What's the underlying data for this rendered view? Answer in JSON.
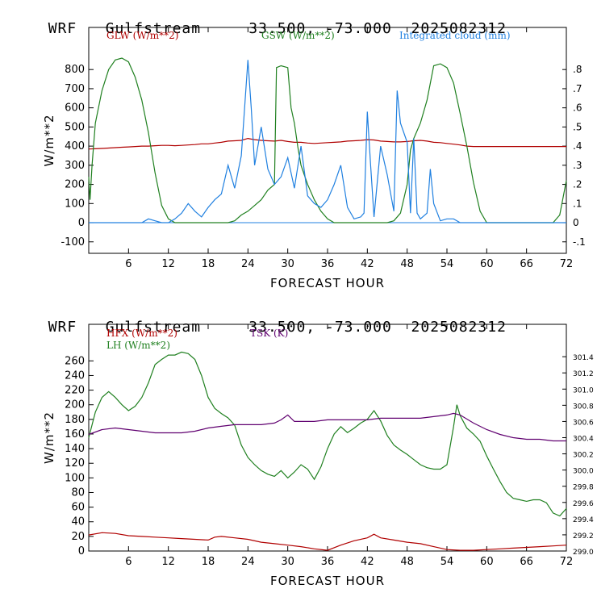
{
  "panels": [
    {
      "header": {
        "model": "WRF",
        "site": "Gulfstream",
        "coords": "33.500, -73.000",
        "run": "2025082312"
      },
      "chart_data": {
        "type": "line",
        "xlabel": "FORECAST HOUR",
        "ylabel": "W/m**2",
        "xlim": [
          0,
          72
        ],
        "ylim": [
          -160,
          1020
        ],
        "yticks": [
          -100,
          0,
          100,
          200,
          300,
          400,
          500,
          600,
          700,
          800
        ],
        "xticks": [
          6,
          12,
          18,
          24,
          30,
          36,
          42,
          48,
          54,
          60,
          66,
          72
        ],
        "y2lim": [
          -0.16,
          1.02
        ],
        "y2ticks": [
          -0.1,
          0,
          0.1,
          0.2,
          0.3,
          0.4,
          0.5,
          0.6,
          0.7,
          0.8
        ],
        "y2tick_labels": [
          "-.1",
          "0",
          ".1",
          ".2",
          ".3",
          ".4",
          ".5",
          ".6",
          ".7",
          ".8"
        ],
        "legend": [
          {
            "label": "GLW (W/m**2)",
            "color": "#b00000"
          },
          {
            "label": "GSW (W/m**2)",
            "color": "#208020"
          },
          {
            "label": "Integrated cloud (mm)",
            "color": "#2080e0"
          }
        ],
        "series": [
          {
            "name": "GLW (W/m**2)",
            "axis": "left",
            "color": "#b00000",
            "x": [
              0,
              1,
              2,
              3,
              4,
              5,
              6,
              7,
              8,
              9,
              10,
              11,
              12,
              13,
              14,
              15,
              16,
              17,
              18,
              19,
              20,
              21,
              22,
              23,
              24,
              25,
              26,
              27,
              28,
              29,
              30,
              31,
              32,
              33,
              34,
              35,
              36,
              37,
              38,
              39,
              40,
              41,
              42,
              43,
              44,
              45,
              46,
              47,
              48,
              49,
              50,
              51,
              52,
              53,
              54,
              55,
              56,
              57,
              58,
              59,
              60,
              61,
              62,
              63,
              64,
              65,
              66,
              67,
              68,
              69,
              70,
              71,
              72
            ],
            "values": [
              385,
              386,
              388,
              390,
              392,
              394,
              396,
              398,
              400,
              400,
              402,
              404,
              404,
              402,
              404,
              406,
              408,
              412,
              412,
              416,
              420,
              426,
              428,
              430,
              440,
              434,
              430,
              428,
              426,
              430,
              424,
              420,
              420,
              416,
              414,
              416,
              418,
              420,
              422,
              426,
              428,
              430,
              434,
              432,
              426,
              424,
              422,
              422,
              424,
              428,
              430,
              426,
              420,
              418,
              414,
              410,
              406,
              400,
              398,
              398,
              398,
              398,
              398,
              398,
              398,
              398,
              398,
              398,
              398,
              398,
              398,
              398,
              398
            ]
          },
          {
            "name": "GSW (W/m**2)",
            "axis": "left",
            "color": "#208020",
            "x": [
              0,
              0.2,
              0.5,
              1,
              2,
              3,
              4,
              5,
              6,
              7,
              8,
              9,
              10,
              11,
              12,
              13,
              14,
              18,
              20,
              21,
              22,
              23,
              24,
              25,
              26,
              27,
              28,
              28.3,
              29,
              30,
              30.5,
              31,
              31.5,
              32,
              33,
              34,
              35,
              36,
              37,
              38,
              39,
              40,
              41,
              42,
              43,
              44,
              45,
              46,
              47,
              48,
              48.5,
              49,
              50,
              51,
              52,
              53,
              54,
              55,
              56,
              57,
              58,
              59,
              60,
              62,
              66,
              70,
              71,
              72
            ],
            "values": [
              240,
              120,
              300,
              520,
              690,
              800,
              850,
              860,
              840,
              760,
              640,
              470,
              260,
              90,
              20,
              0,
              0,
              0,
              0,
              0,
              10,
              40,
              60,
              90,
              120,
              170,
              200,
              810,
              820,
              810,
              600,
              520,
              400,
              300,
              200,
              120,
              60,
              20,
              0,
              0,
              0,
              0,
              0,
              0,
              0,
              0,
              0,
              10,
              50,
              200,
              380,
              440,
              520,
              640,
              820,
              830,
              810,
              730,
              570,
              400,
              210,
              60,
              0,
              0,
              0,
              0,
              40,
              220
            ]
          },
          {
            "name": "Integrated cloud (mm)",
            "axis": "right",
            "color": "#2080e0",
            "x": [
              0,
              8,
              9,
              10,
              11,
              12,
              13,
              14,
              15,
              16,
              17,
              18,
              19,
              20,
              21,
              22,
              23,
              24,
              24.5,
              25,
              26,
              27,
              28,
              29,
              30,
              31,
              32,
              33,
              34,
              35,
              36,
              37,
              38,
              39,
              40,
              41,
              41.5,
              42,
              42.5,
              43,
              44,
              45,
              46,
              46.5,
              47,
              48,
              48.5,
              49,
              49.5,
              50,
              51,
              51.5,
              52,
              53,
              54,
              55,
              56,
              72
            ],
            "y2": [
              0,
              0,
              0.02,
              0.01,
              0,
              0,
              0.02,
              0.05,
              0.1,
              0.06,
              0.03,
              0.08,
              0.12,
              0.15,
              0.3,
              0.18,
              0.35,
              0.85,
              0.6,
              0.3,
              0.5,
              0.28,
              0.2,
              0.24,
              0.34,
              0.18,
              0.4,
              0.14,
              0.1,
              0.08,
              0.12,
              0.2,
              0.3,
              0.08,
              0.02,
              0.03,
              0.05,
              0.58,
              0.3,
              0.03,
              0.4,
              0.25,
              0.06,
              0.69,
              0.52,
              0.42,
              0.05,
              0.44,
              0.05,
              0.02,
              0.05,
              0.28,
              0.1,
              0.01,
              0.02,
              0.02,
              0,
              0
            ]
          }
        ]
      }
    },
    {
      "header": {
        "model": "WRF",
        "site": "Gulfstream",
        "coords": "33.500, -73.000",
        "run": "2025082312"
      },
      "chart_data": {
        "type": "line",
        "xlabel": "FORECAST HOUR",
        "ylabel": "W/m**2",
        "xlim": [
          0,
          72
        ],
        "ylim": [
          0,
          310
        ],
        "yticks": [
          0,
          20,
          40,
          60,
          80,
          100,
          120,
          140,
          160,
          180,
          200,
          220,
          240,
          260
        ],
        "xticks": [
          6,
          12,
          18,
          24,
          30,
          36,
          42,
          48,
          54,
          60,
          66,
          72
        ],
        "y2lim": [
          299.0,
          301.8
        ],
        "y2ticks": [
          299.0,
          299.2,
          299.4,
          299.6,
          299.8,
          300.0,
          300.2,
          300.4,
          300.6,
          300.8,
          301.0,
          301.2,
          301.4
        ],
        "y2tick_labels": [
          "299.0",
          "299.2",
          "299.4",
          "299.6",
          "299.8",
          "300.0",
          "300.2",
          "300.4",
          "300.6",
          "300.8",
          "301.0",
          "301.2",
          "301.4"
        ],
        "legend": [
          {
            "label": "HFX (W/m**2)",
            "color": "#b00000"
          },
          {
            "label": "LH  (W/m**2)",
            "color": "#208020"
          },
          {
            "label": "TSK (K)",
            "color": "#600070"
          }
        ],
        "series": [
          {
            "name": "HFX (W/m**2)",
            "axis": "left",
            "color": "#b00000",
            "x": [
              0,
              2,
              4,
              6,
              8,
              10,
              12,
              14,
              16,
              18,
              19,
              20,
              22,
              24,
              26,
              28,
              30,
              32,
              34,
              36,
              38,
              40,
              42,
              43,
              44,
              46,
              48,
              50,
              52,
              54,
              56,
              58,
              60,
              62,
              64,
              66,
              68,
              70,
              72
            ],
            "values": [
              22,
              25,
              24,
              21,
              20,
              19,
              18,
              17,
              16,
              15,
              19,
              20,
              18,
              16,
              12,
              10,
              8,
              6,
              3,
              1,
              8,
              14,
              18,
              23,
              18,
              15,
              12,
              10,
              6,
              2,
              1,
              1,
              2,
              3,
              4,
              5,
              6,
              7,
              8
            ]
          },
          {
            "name": "LH  (W/m**2)",
            "axis": "left",
            "color": "#208020",
            "x": [
              0,
              1,
              2,
              3,
              4,
              5,
              6,
              7,
              8,
              9,
              10,
              11,
              12,
              13,
              14,
              15,
              16,
              17,
              18,
              19,
              20,
              21,
              22,
              23,
              24,
              25,
              26,
              27,
              28,
              29,
              30,
              31,
              32,
              33,
              34,
              35,
              36,
              37,
              38,
              39,
              40,
              41,
              42,
              43,
              44,
              45,
              46,
              47,
              48,
              49,
              50,
              51,
              52,
              53,
              54,
              55,
              55.5,
              56,
              57,
              58,
              59,
              60,
              61,
              62,
              63,
              64,
              65,
              66,
              67,
              68,
              69,
              70,
              71,
              72
            ],
            "values": [
              155,
              190,
              210,
              218,
              210,
              200,
              192,
              198,
              210,
              230,
              255,
              262,
              268,
              268,
              272,
              270,
              262,
              240,
              210,
              195,
              188,
              182,
              172,
              145,
              128,
              118,
              110,
              105,
              102,
              110,
              100,
              108,
              118,
              112,
              98,
              115,
              140,
              160,
              170,
              162,
              168,
              175,
              180,
              192,
              178,
              158,
              145,
              138,
              132,
              125,
              118,
              114,
              112,
              112,
              118,
              170,
              200,
              185,
              168,
              160,
              150,
              130,
              112,
              95,
              80,
              72,
              70,
              68,
              70,
              70,
              66,
              52,
              48,
              58
            ]
          },
          {
            "name": "TSK (K)",
            "axis": "right",
            "color": "#600070",
            "x": [
              0,
              2,
              4,
              6,
              8,
              10,
              12,
              14,
              16,
              18,
              20,
              22,
              24,
              26,
              28,
              29,
              30,
              31,
              32,
              34,
              36,
              38,
              40,
              42,
              44,
              46,
              48,
              50,
              52,
              54,
              55,
              56,
              58,
              60,
              62,
              64,
              66,
              68,
              70,
              72
            ],
            "y2": [
              300.44,
              300.5,
              300.52,
              300.5,
              300.48,
              300.46,
              300.46,
              300.46,
              300.48,
              300.52,
              300.54,
              300.56,
              300.56,
              300.56,
              300.58,
              300.62,
              300.68,
              300.6,
              300.6,
              300.6,
              300.62,
              300.62,
              300.62,
              300.62,
              300.64,
              300.64,
              300.64,
              300.64,
              300.66,
              300.68,
              300.7,
              300.68,
              300.58,
              300.5,
              300.44,
              300.4,
              300.38,
              300.38,
              300.36,
              300.36
            ]
          }
        ]
      }
    }
  ]
}
